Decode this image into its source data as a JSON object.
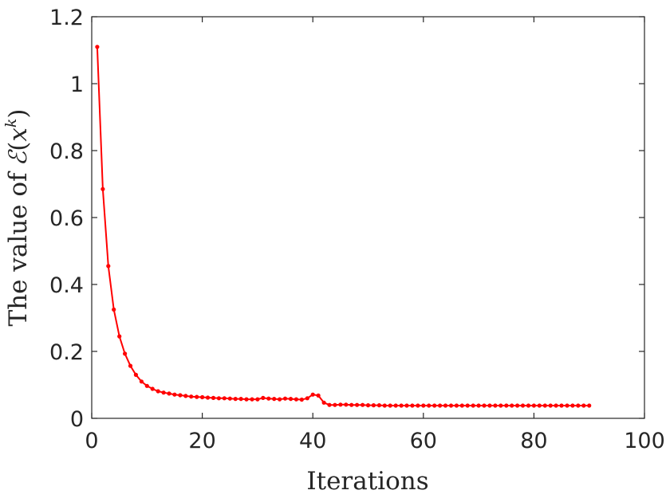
{
  "chart_data": {
    "type": "line",
    "title": "",
    "xlabel": "Iterations",
    "ylabel_prefix": "The value of",
    "ylabel_math_symbol": "ℰ",
    "ylabel_math_var": "x",
    "ylabel_math_sup": "k",
    "xlim": [
      0,
      100
    ],
    "ylim": [
      0,
      1.2
    ],
    "xticks": [
      0,
      20,
      40,
      60,
      80,
      100
    ],
    "xtick_labels": [
      "0",
      "20",
      "40",
      "60",
      "80",
      "100"
    ],
    "yticks": [
      0,
      0.2,
      0.4,
      0.6,
      0.8,
      1,
      1.2
    ],
    "ytick_labels": [
      "0",
      "0.2",
      "0.4",
      "0.6",
      "0.8",
      "1",
      "1.2"
    ],
    "grid": false,
    "box": true,
    "series": [
      {
        "color": "#ff0000",
        "marker": "dot",
        "x": [
          1,
          2,
          3,
          4,
          5,
          6,
          7,
          8,
          9,
          10,
          11,
          12,
          13,
          14,
          15,
          16,
          17,
          18,
          19,
          20,
          21,
          22,
          23,
          24,
          25,
          26,
          27,
          28,
          29,
          30,
          31,
          32,
          33,
          34,
          35,
          36,
          37,
          38,
          39,
          40,
          41,
          42,
          43,
          44,
          45,
          46,
          47,
          48,
          49,
          50,
          51,
          52,
          53,
          54,
          55,
          56,
          57,
          58,
          59,
          60,
          61,
          62,
          63,
          64,
          65,
          66,
          67,
          68,
          69,
          70,
          71,
          72,
          73,
          74,
          75,
          76,
          77,
          78,
          79,
          80,
          81,
          82,
          83,
          84,
          85,
          86,
          87,
          88,
          89,
          90
        ],
        "y": [
          1.11,
          0.685,
          0.455,
          0.325,
          0.245,
          0.193,
          0.157,
          0.13,
          0.11,
          0.097,
          0.088,
          0.081,
          0.077,
          0.074,
          0.071,
          0.069,
          0.067,
          0.065,
          0.064,
          0.063,
          0.062,
          0.061,
          0.06,
          0.06,
          0.059,
          0.058,
          0.058,
          0.057,
          0.057,
          0.057,
          0.061,
          0.059,
          0.058,
          0.057,
          0.059,
          0.058,
          0.057,
          0.056,
          0.06,
          0.071,
          0.068,
          0.047,
          0.04,
          0.04,
          0.041,
          0.041,
          0.04,
          0.04,
          0.04,
          0.039,
          0.039,
          0.039,
          0.038,
          0.038,
          0.038,
          0.038,
          0.038,
          0.038,
          0.038,
          0.038,
          0.038,
          0.038,
          0.038,
          0.038,
          0.038,
          0.038,
          0.038,
          0.038,
          0.038,
          0.038,
          0.038,
          0.038,
          0.038,
          0.038,
          0.038,
          0.038,
          0.038,
          0.038,
          0.038,
          0.038,
          0.038,
          0.038,
          0.038,
          0.038,
          0.038,
          0.038,
          0.038,
          0.038,
          0.038,
          0.038
        ]
      }
    ]
  }
}
